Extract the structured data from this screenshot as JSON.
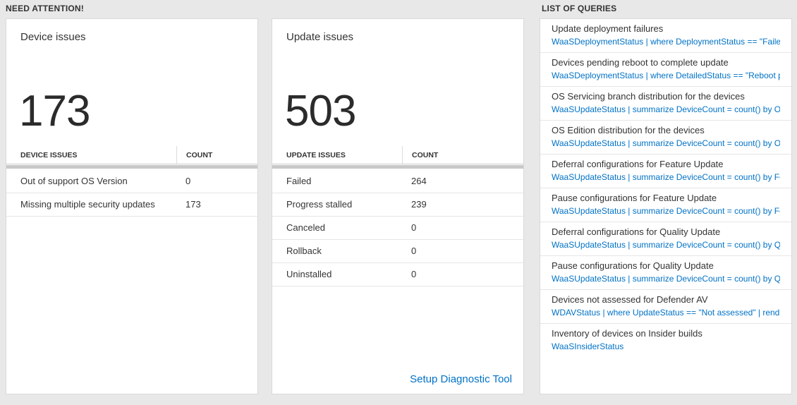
{
  "colors": {
    "accent_blue": "#0072c6",
    "page_bg": "#e8e8e8",
    "scrollbar_gray": "#c8c8c8"
  },
  "need_attention": {
    "header": "NEED ATTENTION!",
    "device_card": {
      "title": "Device issues",
      "value": "173",
      "columns": {
        "label": "DEVICE ISSUES",
        "count": "COUNT"
      },
      "rows": [
        {
          "label": "Out of support OS Version",
          "count": "0"
        },
        {
          "label": "Missing multiple security updates",
          "count": "173"
        }
      ]
    },
    "update_card": {
      "title": "Update issues",
      "value": "503",
      "columns": {
        "label": "UPDATE ISSUES",
        "count": "COUNT"
      },
      "rows": [
        {
          "label": "Failed",
          "count": "264"
        },
        {
          "label": "Progress stalled",
          "count": "239"
        },
        {
          "label": "Canceled",
          "count": "0"
        },
        {
          "label": "Rollback",
          "count": "0"
        },
        {
          "label": "Uninstalled",
          "count": "0"
        }
      ],
      "footer_link": "Setup Diagnostic Tool"
    }
  },
  "queries": {
    "header": "LIST OF QUERIES",
    "items": [
      {
        "title": "Update deployment failures",
        "query": "WaaSDeploymentStatus | where DeploymentStatus == \"Failed\" |..."
      },
      {
        "title": "Devices pending reboot to complete update",
        "query": "WaaSDeploymentStatus | where DetailedStatus == \"Reboot pend..."
      },
      {
        "title": "OS Servicing branch distribution for the devices",
        "query": "WaaSUpdateStatus | summarize DeviceCount = count() by OSSer..."
      },
      {
        "title": "OS Edition distribution for the devices",
        "query": "WaaSUpdateStatus | summarize DeviceCount = count() by OSEdit..."
      },
      {
        "title": "Deferral configurations for Feature Update",
        "query": "WaaSUpdateStatus | summarize DeviceCount = count() by Featur..."
      },
      {
        "title": "Pause configurations for Feature Update",
        "query": "WaaSUpdateStatus | summarize DeviceCount = count() by Featur..."
      },
      {
        "title": "Deferral configurations for Quality Update",
        "query": "WaaSUpdateStatus | summarize DeviceCount = count() by Qualit..."
      },
      {
        "title": "Pause configurations for Quality Update",
        "query": "WaaSUpdateStatus | summarize DeviceCount = count() by Qualit..."
      },
      {
        "title": "Devices not assessed for Defender AV",
        "query": "WDAVStatus | where UpdateStatus == \"Not assessed\" | render ta..."
      },
      {
        "title": "Inventory of devices on Insider builds",
        "query": "WaaSInsiderStatus"
      }
    ]
  }
}
